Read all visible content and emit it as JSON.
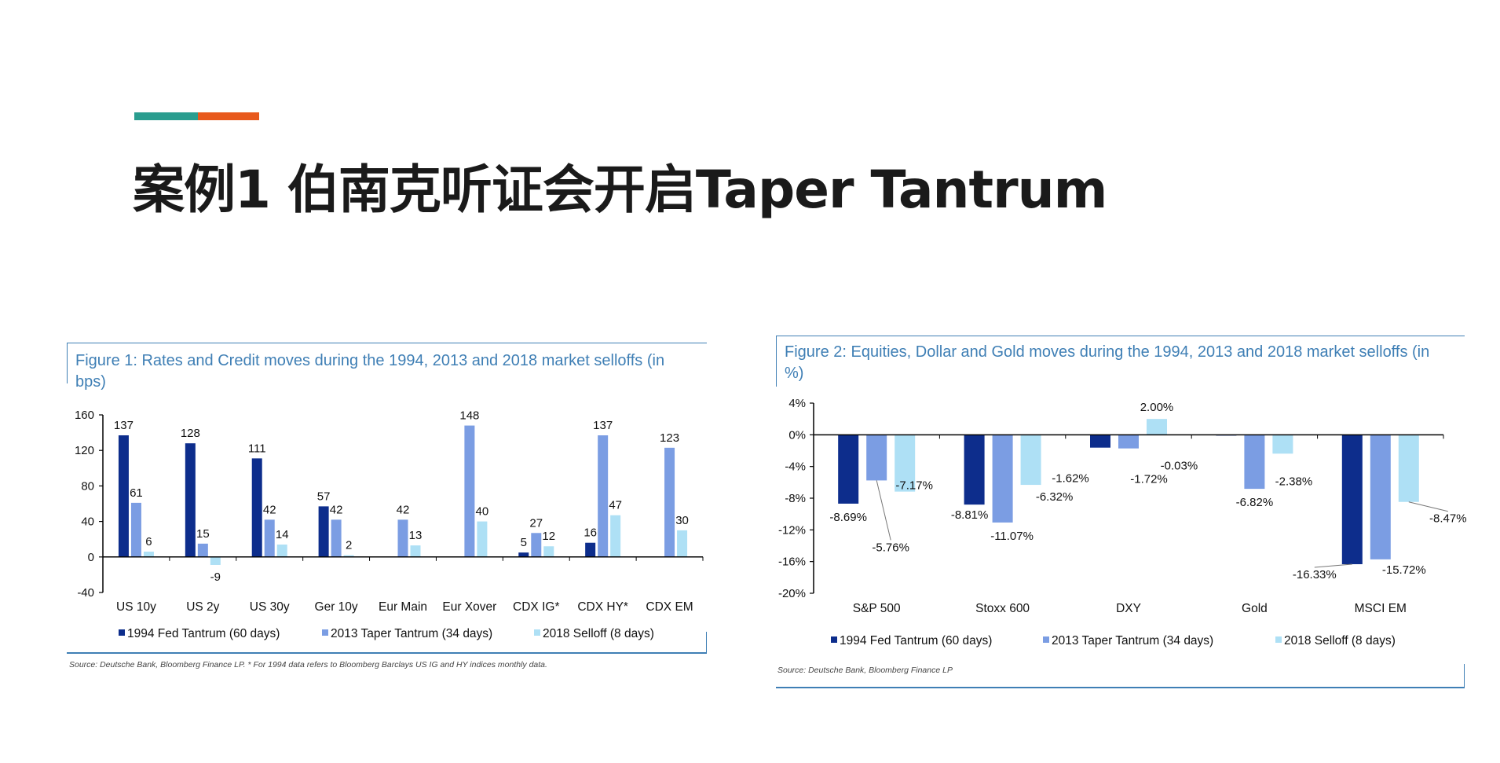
{
  "slide": {
    "title": "案例1 伯南克听证会开启Taper Tantrum",
    "accent_colors": [
      "#2a9d8f",
      "#e8591c"
    ]
  },
  "colors": {
    "series_1994": "#0d2d8c",
    "series_2013": "#7b9de3",
    "series_2018": "#aee0f5",
    "frame": "#3f7fb5",
    "axis": "#000000"
  },
  "chart_data": [
    {
      "type": "bar",
      "title": "Figure 1: Rates and Credit moves during the 1994, 2013 and 2018 market selloffs (in bps)",
      "categories": [
        "US 10y",
        "US 2y",
        "US 30y",
        "Ger 10y",
        "Eur Main",
        "Eur Xover",
        "CDX IG*",
        "CDX HY*",
        "CDX EM"
      ],
      "series": [
        {
          "name": "1994 Fed Tantrum (60 days)",
          "values": [
            137,
            128,
            111,
            57,
            null,
            null,
            5,
            16,
            null
          ]
        },
        {
          "name": "2013 Taper Tantrum (34 days)",
          "values": [
            61,
            15,
            42,
            42,
            42,
            148,
            27,
            137,
            123
          ]
        },
        {
          "name": "2018 Selloff (8 days)",
          "values": [
            6,
            -9,
            14,
            2,
            13,
            40,
            12,
            47,
            30
          ]
        }
      ],
      "ylim": [
        -40,
        160
      ],
      "yticks": [
        160,
        120,
        80,
        40,
        0,
        -40
      ],
      "legend_position": "bottom",
      "grid": false,
      "source": "Source: Deutsche Bank, Bloomberg Finance LP. * For 1994 data refers to Bloomberg Barclays US IG and HY indices monthly data."
    },
    {
      "type": "bar",
      "title": "Figure 2: Equities, Dollar and Gold moves during the 1994, 2013 and 2018 market selloffs (in %)",
      "categories": [
        "S&P 500",
        "Stoxx 600",
        "DXY",
        "Gold",
        "MSCI EM"
      ],
      "series": [
        {
          "name": "1994 Fed Tantrum (60 days)",
          "values": [
            -8.69,
            -8.81,
            -1.62,
            -0.03,
            -16.33
          ]
        },
        {
          "name": "2013 Taper Tantrum (34 days)",
          "values": [
            -5.76,
            -11.07,
            -1.72,
            -6.82,
            -15.72
          ]
        },
        {
          "name": "2018 Selloff (8 days)",
          "values": [
            -7.17,
            -6.32,
            2.0,
            -2.38,
            -8.47
          ]
        }
      ],
      "labels": [
        [
          "-8.69%",
          "-8.81%",
          "-1.62%",
          "-0.03%",
          "-16.33%"
        ],
        [
          "-5.76%",
          "-11.07%",
          "-1.72%",
          "-6.82%",
          "-15.72%"
        ],
        [
          "-7.17%",
          "-6.32%",
          "2.00%",
          "-2.38%",
          "-8.47%"
        ]
      ],
      "ylim": [
        -20,
        4
      ],
      "yticks": [
        "4%",
        "0%",
        "-4%",
        "-8%",
        "-12%",
        "-16%",
        "-20%"
      ],
      "ytick_values": [
        4,
        0,
        -4,
        -8,
        -12,
        -16,
        -20
      ],
      "legend_position": "bottom",
      "grid": false,
      "source": "Source: Deutsche Bank, Bloomberg Finance LP"
    }
  ]
}
